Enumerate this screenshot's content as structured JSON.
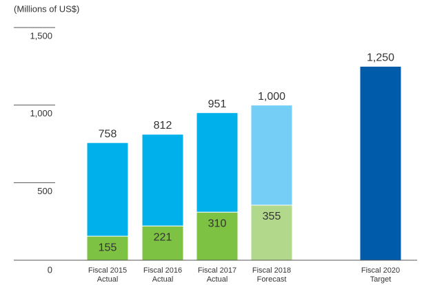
{
  "chart_data": {
    "type": "stacked_bar",
    "y_axis_label": "(Millions of US$)",
    "categories": [
      [
        "Fiscal 2015",
        "Actual"
      ],
      [
        "Fiscal 2016",
        "Actual"
      ],
      [
        "Fiscal 2017",
        "Actual"
      ],
      [
        "Fiscal 2018",
        "Forecast"
      ],
      [
        "Fiscal 2020",
        "Target"
      ]
    ],
    "series": [
      {
        "colors": [
          "#7dc242",
          "#7dc242",
          "#7dc242",
          "#b2d88c",
          "#7dc242"
        ],
        "values": [
          155,
          221,
          310,
          355,
          null
        ]
      },
      {
        "colors": [
          "#00b0ea",
          "#00b0ea",
          "#00b0ea",
          "#75cef5",
          "#00b0ea"
        ],
        "values": [
          603,
          591,
          641,
          645,
          null
        ]
      },
      {
        "colors": [
          "#005bab",
          "#005bab",
          "#005bab",
          "#005bab",
          "#005bab"
        ],
        "values": [
          null,
          null,
          null,
          null,
          1250
        ]
      }
    ],
    "totals": [
      758,
      812,
      951,
      1000,
      1250
    ],
    "total_labels": [
      "758",
      "812",
      "951",
      "1,000",
      "1,250"
    ],
    "ylim": [
      0,
      1500
    ],
    "yticks": [
      0,
      500,
      {
        "value": 1000,
        "label": "1,000"
      },
      {
        "value": 1500,
        "label": "1,500"
      }
    ]
  }
}
